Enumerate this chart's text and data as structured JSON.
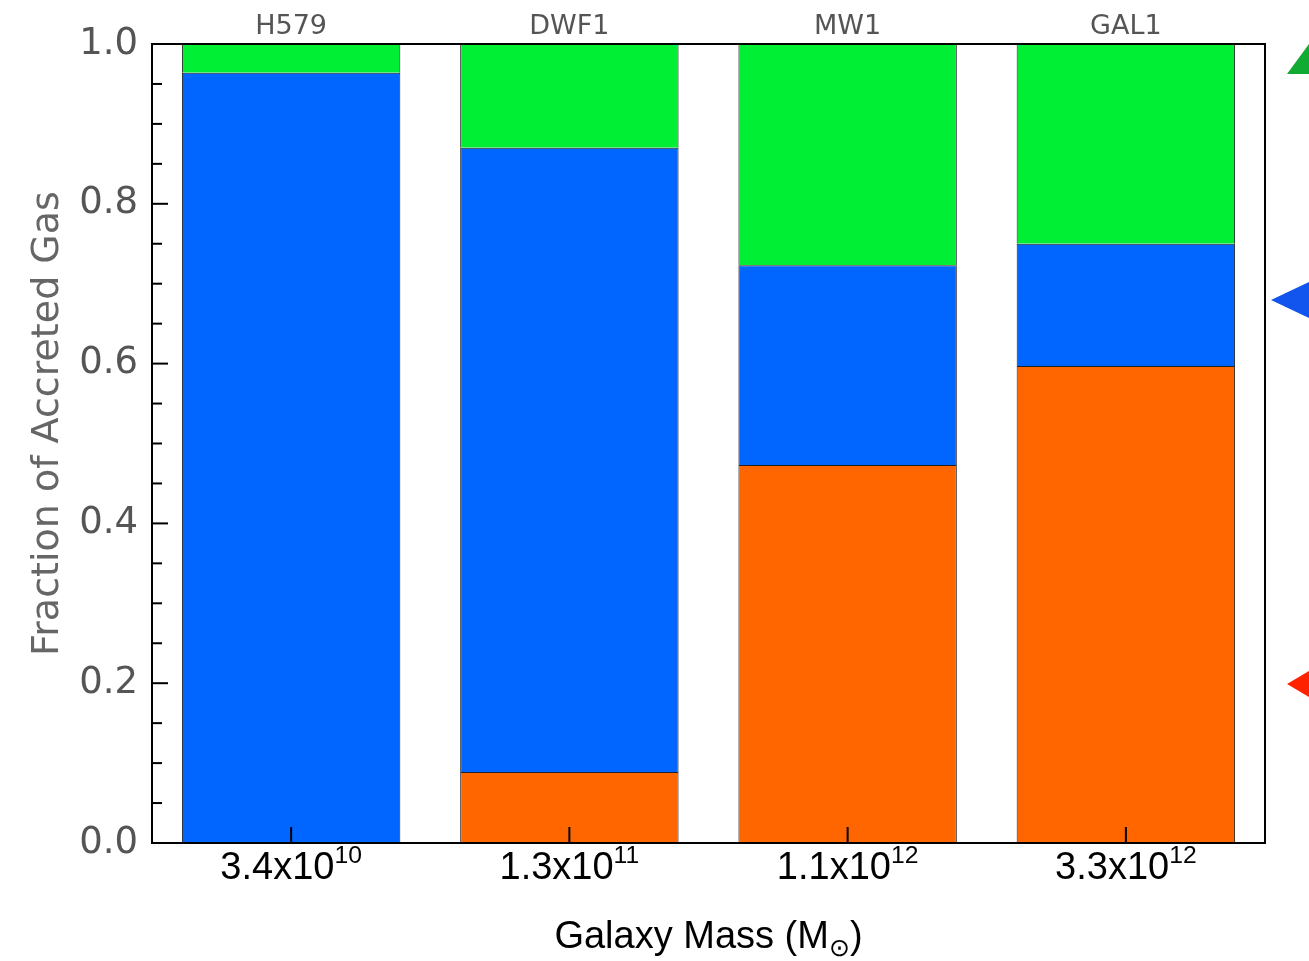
{
  "chart_data": {
    "type": "bar",
    "stacked": true,
    "xlabel": "Galaxy Mass (M$_{⊙}$)",
    "ylabel": "Fraction of Accreted Gas",
    "categories": [
      "3.4x10$^{10}$",
      "1.3x10$^{11}$",
      "1.1x10$^{12}$",
      "3.3x10$^{12}$"
    ],
    "series": [
      {
        "color": "#ff6600",
        "values": [
          0,
          0.089,
          0.473,
          0.597
        ]
      },
      {
        "color": "#0066ff",
        "values": [
          0.964,
          0.781,
          0.25,
          0.153
        ]
      },
      {
        "color": "#00ee33",
        "values": [
          0.036,
          0.13,
          0.277,
          0.25
        ]
      }
    ],
    "ylim": [
      0,
      1
    ],
    "yticks": [
      {
        "value": 0,
        "label": "0.0"
      },
      {
        "value": 0.05,
        "label": null
      },
      {
        "value": 0.1,
        "label": null
      },
      {
        "value": 0.15,
        "label": null
      },
      {
        "value": 0.2,
        "label": "0.2"
      },
      {
        "value": 0.25,
        "label": null
      },
      {
        "value": 0.3,
        "label": null
      },
      {
        "value": 0.35,
        "label": null
      },
      {
        "value": 0.4,
        "label": "0.4"
      },
      {
        "value": 0.45,
        "label": null
      },
      {
        "value": 0.5,
        "label": null
      },
      {
        "value": 0.55,
        "label": null
      },
      {
        "value": 0.6,
        "label": "0.6"
      },
      {
        "value": 0.65,
        "label": null
      },
      {
        "value": 0.7,
        "label": null
      },
      {
        "value": 0.75,
        "label": null
      },
      {
        "value": 0.8,
        "label": "0.8"
      },
      {
        "value": 0.85,
        "label": null
      },
      {
        "value": 0.9,
        "label": null
      },
      {
        "value": 0.95,
        "label": null
      },
      {
        "value": 1,
        "label": "1.0"
      }
    ],
    "annotations": [
      "H579",
      "DWF1",
      "MW1",
      "GAL1"
    ],
    "grid": false,
    "legend": false
  }
}
